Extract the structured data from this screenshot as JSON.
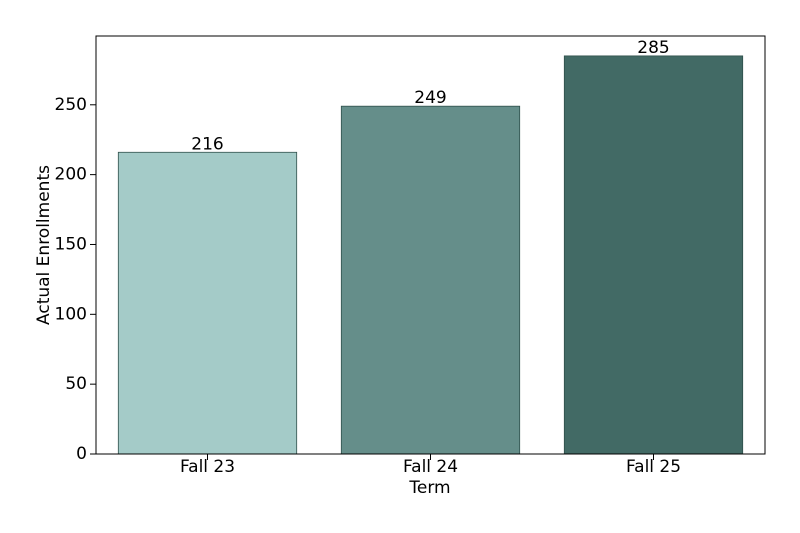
{
  "chart_data": {
    "type": "bar",
    "x_label": "Term",
    "y_label": "Actual Enrollments",
    "categories": [
      "Fall 23",
      "Fall 24",
      "Fall 25"
    ],
    "values": [
      216,
      249,
      285
    ],
    "colors": [
      "#a4cbc8",
      "#658e8a",
      "#426a65"
    ],
    "ylim": [
      0,
      299.25
    ],
    "yticks": [
      0,
      50,
      100,
      150,
      200,
      250
    ],
    "grid": false
  }
}
